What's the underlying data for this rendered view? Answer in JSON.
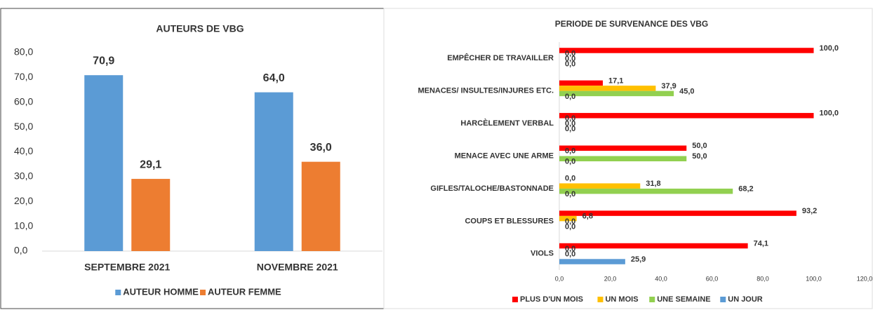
{
  "chart_data": [
    {
      "type": "bar",
      "orientation": "vertical",
      "title": "AUTEURS  DE VBG",
      "categories": [
        "SEPTEMBRE 2021",
        "NOVEMBRE 2021"
      ],
      "series": [
        {
          "name": "AUTEUR HOMME",
          "color": "#5b9bd5",
          "values": [
            70.9,
            64.0
          ],
          "value_labels": [
            "70,9",
            "64,0"
          ]
        },
        {
          "name": "AUTEUR FEMME",
          "color": "#ed7d31",
          "values": [
            29.1,
            36.0
          ],
          "value_labels": [
            "29,1",
            "36,0"
          ]
        }
      ],
      "ylim": [
        0,
        80
      ],
      "yticks": [
        {
          "value": 0,
          "label": "0,0"
        },
        {
          "value": 10,
          "label": "10,0"
        },
        {
          "value": 20,
          "label": "20,0"
        },
        {
          "value": 30,
          "label": "30,0"
        },
        {
          "value": 40,
          "label": "40,0"
        },
        {
          "value": 50,
          "label": "50,0"
        },
        {
          "value": 60,
          "label": "60,0"
        },
        {
          "value": 70,
          "label": "70,0"
        },
        {
          "value": 80,
          "label": "80,0"
        }
      ],
      "legend": "bottom"
    },
    {
      "type": "bar",
      "orientation": "horizontal",
      "title": "PERIODE DE SURVENANCE DES VBG",
      "categories": [
        "EMPÊCHER DE TRAVAILLER",
        "MENACES/ INSULTES/INJURES ETC.",
        "HARCÈLEMENT VERBAL",
        "MENACE AVEC UNE ARME",
        "GIFLES/TALOCHE/BASTONNADE",
        "COUPS ET BLESSURES",
        "VIOLS"
      ],
      "series": [
        {
          "name": "PLUS D'UN MOIS",
          "color": "#ff0000",
          "values": [
            100,
            17.1,
            100,
            50,
            0,
            93.2,
            74.1
          ],
          "value_labels": [
            "100,0",
            "17,1",
            "100,0",
            "50,0",
            "0,0",
            "93,2",
            "74,1"
          ]
        },
        {
          "name": "UN MOIS",
          "color": "#ffc000",
          "values": [
            0,
            37.9,
            0,
            0,
            31.8,
            6.8,
            0
          ],
          "value_labels": [
            "0,0",
            "37,9",
            "0,0",
            "0,0",
            "31,8",
            "6,8",
            "0,0"
          ]
        },
        {
          "name": "UNE SEMAINE",
          "color": "#92d050",
          "values": [
            0,
            45.0,
            0,
            50,
            68.2,
            0,
            0
          ],
          "value_labels": [
            "0,0",
            "45,0",
            "0,0",
            "50,0",
            "68,2",
            "0,0",
            "0,0"
          ]
        },
        {
          "name": "UN JOUR",
          "color": "#5b9bd5",
          "values": [
            0,
            0,
            0,
            0,
            0,
            0,
            25.9
          ],
          "value_labels": [
            "0,0",
            "0,0",
            "0,0",
            "0,0",
            "0,0",
            "0,0",
            "25,9"
          ]
        }
      ],
      "xlim": [
        0,
        120
      ],
      "xticks": [
        {
          "value": 0,
          "label": "0,0"
        },
        {
          "value": 20,
          "label": "20,0"
        },
        {
          "value": 40,
          "label": "40,0"
        },
        {
          "value": 60,
          "label": "60,0"
        },
        {
          "value": 80,
          "label": "80,0"
        },
        {
          "value": 100,
          "label": "100,0"
        },
        {
          "value": 120,
          "label": "120,0"
        }
      ],
      "legend": "bottom"
    }
  ]
}
